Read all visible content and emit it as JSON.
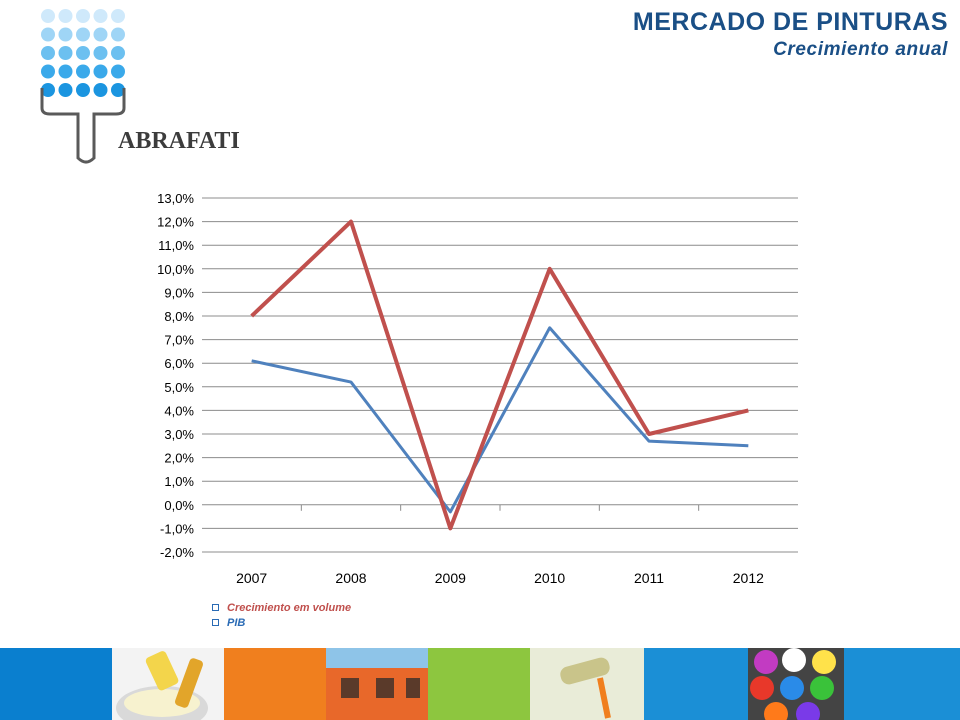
{
  "header": {
    "title": "MERCADO DE PINTURAS",
    "subtitle": "Crecimiento anual",
    "logo_text": "ABRAFATI"
  },
  "legend": {
    "items": [
      {
        "label": "Crecimiento em volume",
        "color": "#c0504d"
      },
      {
        "label": "PIB",
        "color": "#4f81bd"
      }
    ]
  },
  "chart_data": {
    "type": "line",
    "x": [
      "2007",
      "2008",
      "2009",
      "2010",
      "2011",
      "2012"
    ],
    "series": [
      {
        "name": "Crecimiento em volume",
        "color": "#c0504d",
        "values": [
          8.0,
          12.0,
          -1.0,
          10.0,
          3.0,
          4.0
        ]
      },
      {
        "name": "PIB",
        "color": "#4f81bd",
        "values": [
          6.1,
          5.2,
          -0.3,
          7.5,
          2.7,
          2.5
        ]
      }
    ],
    "ylim": [
      -2,
      13
    ],
    "yticks": [
      "-2,0%",
      "-1,0%",
      "0,0%",
      "1,0%",
      "2,0%",
      "3,0%",
      "4,0%",
      "5,0%",
      "6,0%",
      "7,0%",
      "8,0%",
      "9,0%",
      "10,0%",
      "11,0%",
      "12,0%",
      "13,0%"
    ],
    "grid": true,
    "legend_position": "bottom-left"
  },
  "footer_strip": {
    "colors": [
      "#0a7fcf",
      "#f3f3f3",
      "#f07f1e",
      "#e8682a",
      "#8dc63f",
      "#e9ecd8",
      "#1b8fd6",
      "#5a5a5a",
      "#1b8fd6"
    ]
  }
}
